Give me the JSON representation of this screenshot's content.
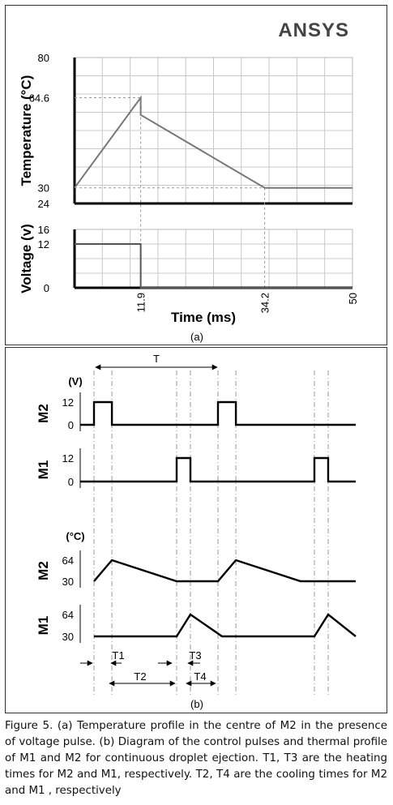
{
  "logo_text": "ANSYS",
  "colors": {
    "grid": "#c8c8c8",
    "curve": "#777777",
    "trace": "#000000",
    "guide": "#999999"
  },
  "panel_a_label": "(a)",
  "panel_b_label": "(b)",
  "chart_data": [
    {
      "type": "line",
      "ylabel": "Temperature (°C)",
      "ylim": [
        24,
        80
      ],
      "xlim": [
        0,
        50
      ],
      "yticks": [
        "80",
        "64.6",
        "30",
        "24"
      ],
      "ytick_values": [
        80,
        64.6,
        30,
        24
      ],
      "grid": true,
      "series": [
        {
          "x": [
            0,
            11.9,
            11.9,
            34.2,
            50
          ],
          "y": [
            30,
            64.6,
            58,
            30,
            30
          ]
        }
      ]
    },
    {
      "type": "line",
      "ylabel": "Voltage (v)",
      "xlabel": "Time (ms)",
      "ylim": [
        0,
        16
      ],
      "xlim": [
        0,
        50
      ],
      "yticks": [
        "16",
        "12",
        "0"
      ],
      "ytick_values": [
        16,
        12,
        0
      ],
      "xticks": [
        "11.9",
        "34.2",
        "50"
      ],
      "xtick_values": [
        11.9,
        34.2,
        50
      ],
      "grid": true,
      "series": [
        {
          "x": [
            0,
            11.9,
            11.9,
            50
          ],
          "y": [
            12,
            12,
            0,
            0
          ]
        }
      ]
    },
    {
      "type": "line",
      "title": "M2",
      "unit": "(V)",
      "yticks": [
        "12",
        "0"
      ],
      "ytick_values": [
        12,
        0
      ],
      "ylim": [
        0,
        12
      ],
      "xlim": [
        0,
        20
      ],
      "series": [
        {
          "x": [
            0,
            1,
            1,
            2.3,
            2.3,
            10,
            10,
            11.3,
            11.3,
            20
          ],
          "y": [
            0,
            0,
            12,
            12,
            0,
            0,
            12,
            12,
            0,
            0
          ]
        }
      ]
    },
    {
      "type": "line",
      "title": "M1",
      "yticks": [
        "12",
        "0"
      ],
      "ytick_values": [
        12,
        0
      ],
      "ylim": [
        0,
        12
      ],
      "xlim": [
        0,
        20
      ],
      "series": [
        {
          "x": [
            0,
            7,
            7,
            8,
            8,
            17,
            17,
            18,
            18,
            20
          ],
          "y": [
            0,
            0,
            12,
            12,
            0,
            0,
            12,
            12,
            0,
            0
          ]
        }
      ]
    },
    {
      "type": "line",
      "title": "M2",
      "unit": "(°C)",
      "yticks": [
        "64",
        "30"
      ],
      "ytick_values": [
        64,
        30
      ],
      "ylim": [
        30,
        64
      ],
      "xlim": [
        0,
        20
      ],
      "series": [
        {
          "x": [
            1,
            2.3,
            7,
            10,
            11.3,
            16,
            20
          ],
          "y": [
            30,
            64,
            30,
            30,
            64,
            30,
            30
          ]
        }
      ]
    },
    {
      "type": "line",
      "title": "M1",
      "yticks": [
        "64",
        "30"
      ],
      "ytick_values": [
        64,
        30
      ],
      "ylim": [
        30,
        64
      ],
      "xlim": [
        0,
        20
      ],
      "series": [
        {
          "x": [
            1,
            7,
            8,
            10.3,
            17,
            18,
            20
          ],
          "y": [
            30,
            30,
            64,
            30,
            30,
            64,
            30
          ]
        }
      ]
    }
  ],
  "intervals": {
    "period": "T",
    "t1": "T1",
    "t2": "T2",
    "t3": "T3",
    "t4": "T4"
  },
  "caption": "Figure 5. (a) Temperature profile in the centre of M2 in the presence of voltage pulse. (b) Diagram of the control pulses and thermal profile of M1 and M2 for continuous droplet ejection. T1, T3 are the heating times for M2 and M1, respectively. T2, T4 are the cooling times for M2 and M1 , respectively"
}
